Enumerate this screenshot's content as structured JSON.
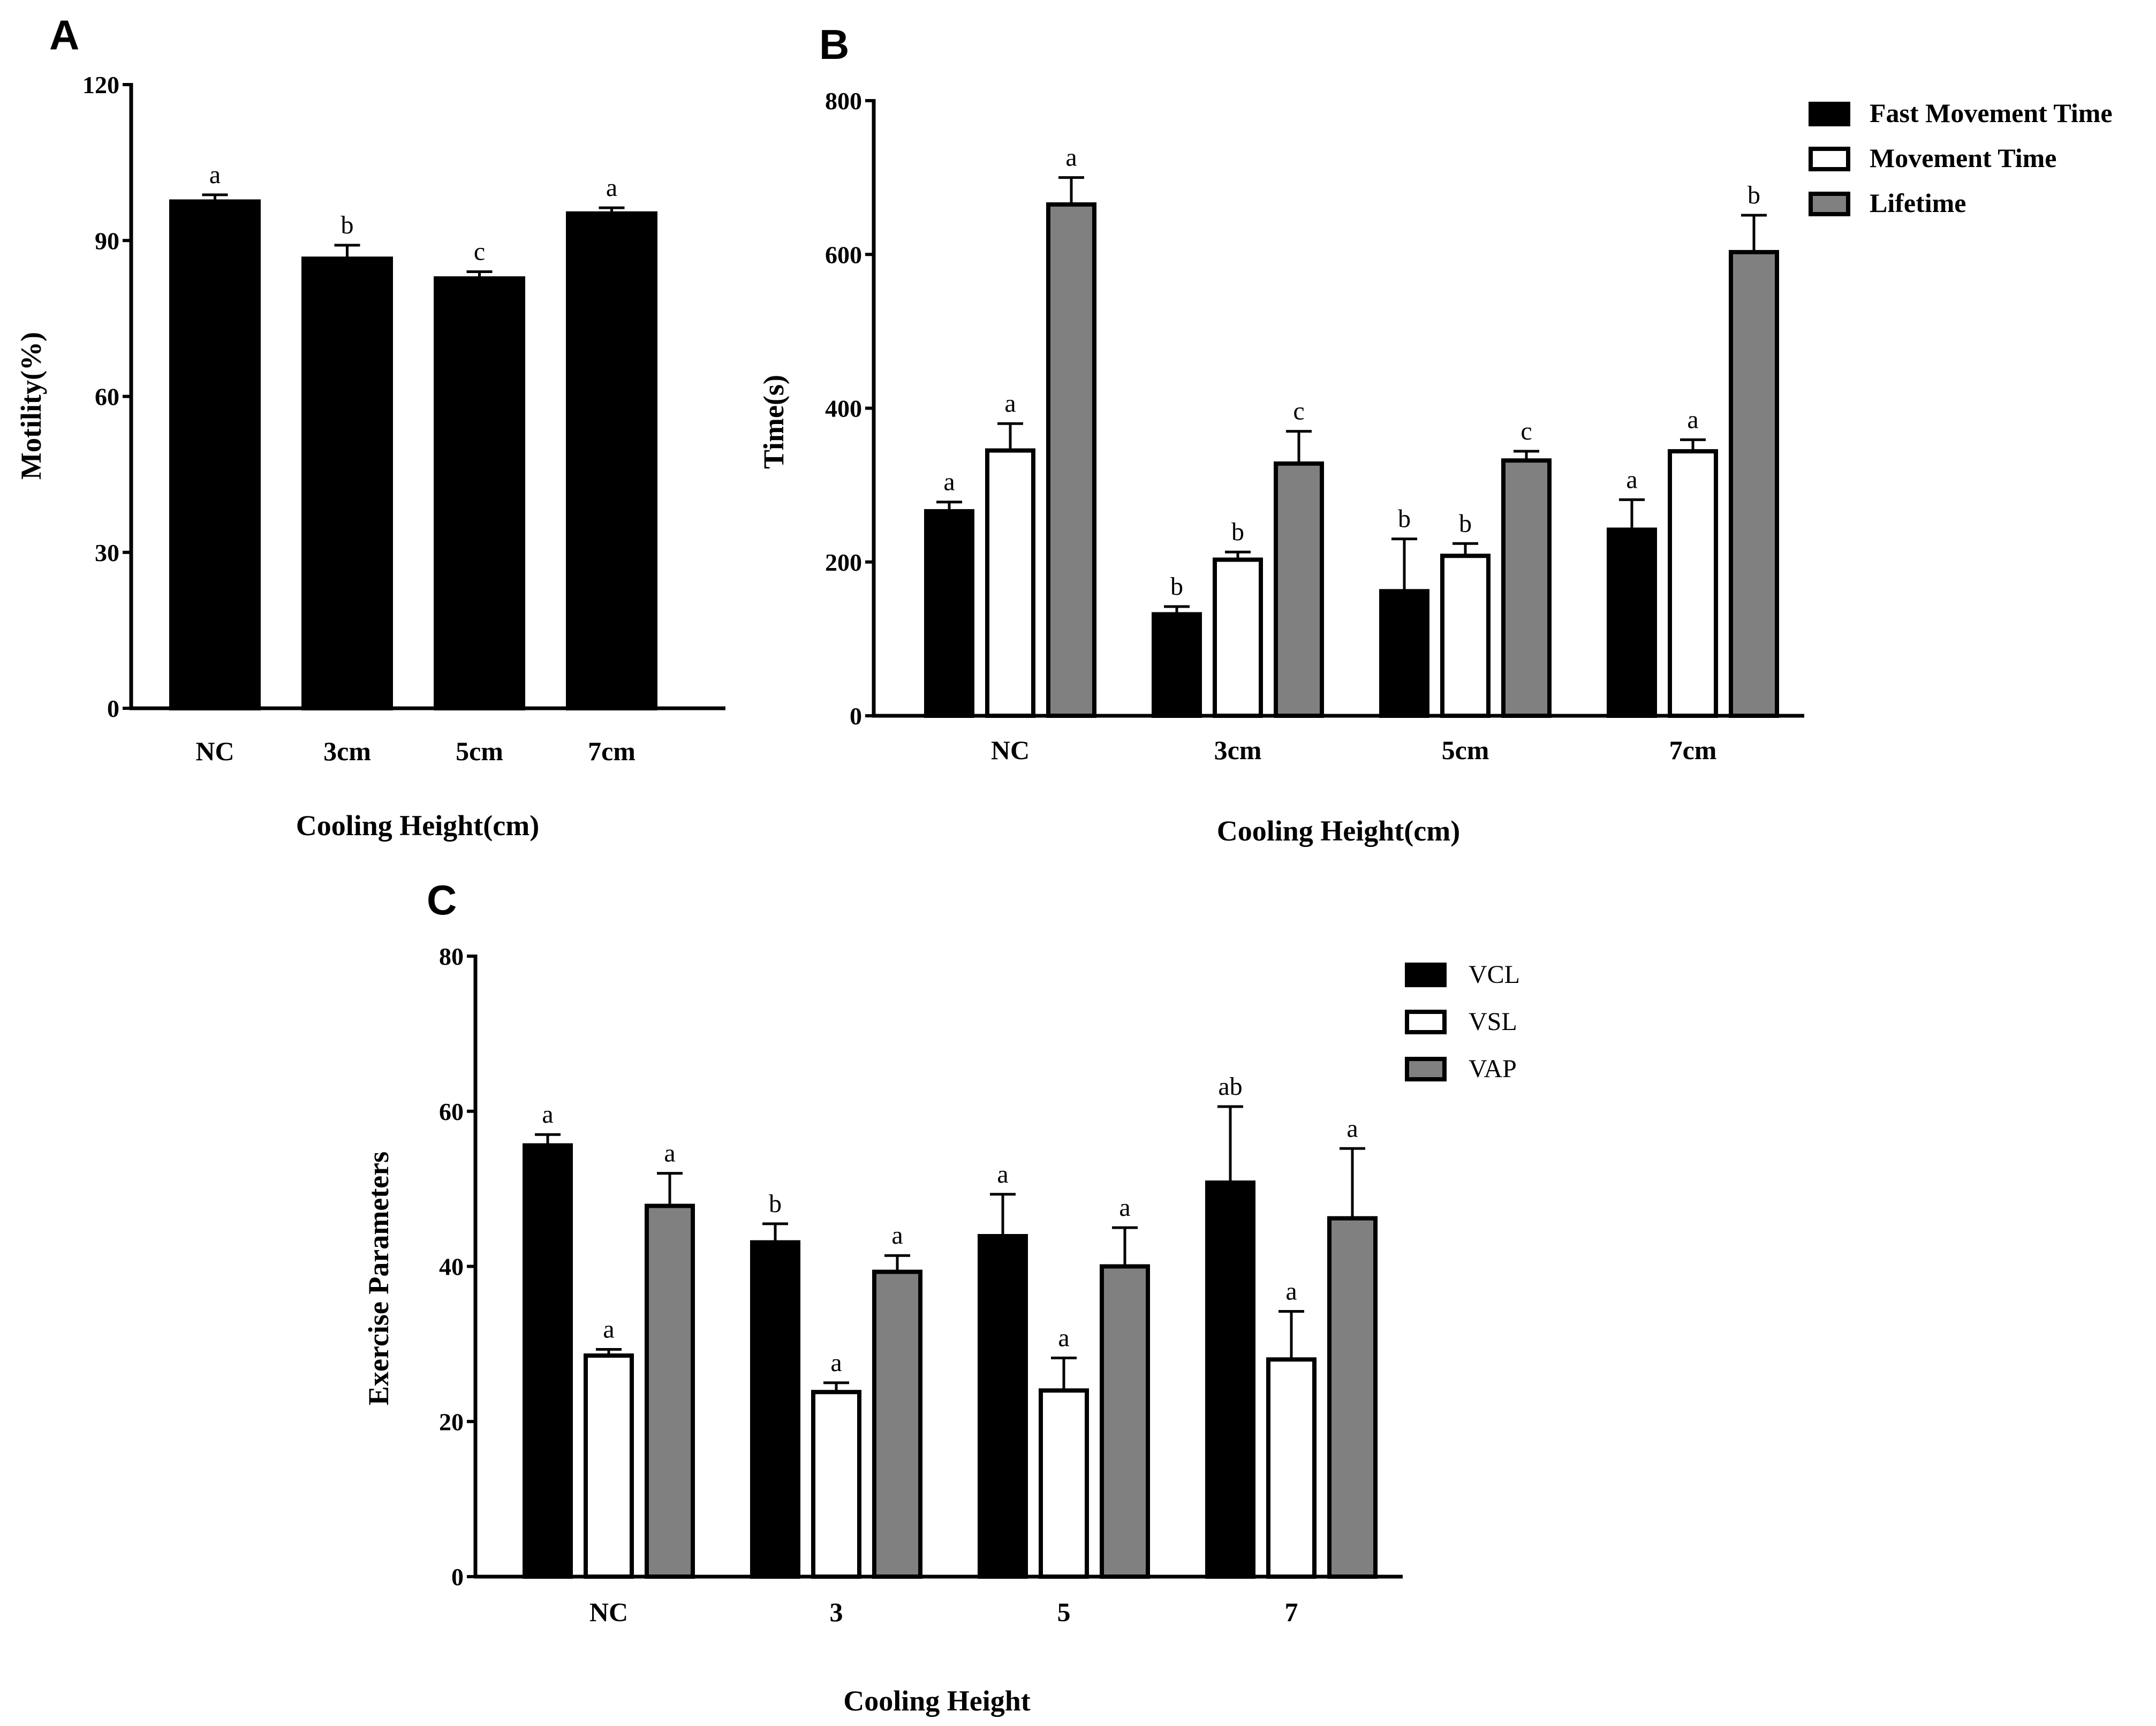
{
  "chart_data": [
    {
      "panel": "A",
      "type": "bar",
      "title": "",
      "xlabel": "Cooling Height(cm)",
      "ylabel": "Motility(%)",
      "ylim": [
        0,
        120
      ],
      "yticks": [
        "0",
        "30",
        "60",
        "90",
        "120"
      ],
      "categories": [
        "NC",
        "3cm",
        "5cm",
        "7cm"
      ],
      "series": [
        {
          "name": "Motility",
          "color": "#000000",
          "values": [
            97.5,
            86.5,
            82.7,
            95.2
          ],
          "errors": [
            1.3,
            2.6,
            1.3,
            1.1
          ],
          "significance": [
            "a",
            "b",
            "c",
            "a"
          ]
        }
      ]
    },
    {
      "panel": "B",
      "type": "bar",
      "title": "",
      "xlabel": "Cooling Height(cm)",
      "ylabel": "Time(s)",
      "ylim": [
        0,
        800
      ],
      "yticks": [
        "0",
        "200",
        "400",
        "600",
        "800"
      ],
      "categories": [
        "NC",
        "3cm",
        "5cm",
        "7cm"
      ],
      "legend_position": "top-right",
      "series": [
        {
          "name": "Fast Movement Time",
          "color": "#000000",
          "values": [
            266,
            132,
            162,
            242
          ],
          "errors": [
            12,
            10,
            68,
            39
          ],
          "significance": [
            "a",
            "b",
            "b",
            "a"
          ]
        },
        {
          "name": "Movement Time",
          "color": "#ffffff",
          "values": [
            345,
            203,
            208,
            344
          ],
          "errors": [
            35,
            10,
            16,
            15
          ],
          "significance": [
            "a",
            "b",
            "b",
            "a"
          ]
        },
        {
          "name": "Lifetime",
          "color": "#808080",
          "values": [
            665,
            328,
            332,
            603
          ],
          "errors": [
            35,
            42,
            12,
            48
          ],
          "significance": [
            "a",
            "c",
            "c",
            "b"
          ]
        }
      ]
    },
    {
      "panel": "C",
      "type": "bar",
      "title": "",
      "xlabel": "Cooling Height",
      "ylabel": "Exercise Parameters",
      "ylim": [
        0,
        80
      ],
      "yticks": [
        "0",
        "20",
        "40",
        "60",
        "80"
      ],
      "categories": [
        "NC",
        "3",
        "5",
        "7"
      ],
      "legend_position": "top-right",
      "series": [
        {
          "name": "VCL",
          "color": "#000000",
          "values": [
            55.6,
            43.1,
            43.9,
            50.8
          ],
          "errors": [
            1.4,
            2.4,
            5.4,
            9.8
          ],
          "significance": [
            "a",
            "b",
            "a",
            "ab"
          ]
        },
        {
          "name": "VSL",
          "color": "#ffffff",
          "values": [
            28.5,
            23.8,
            24.0,
            28.0
          ],
          "errors": [
            0.8,
            1.2,
            4.2,
            6.2
          ],
          "significance": [
            "a",
            "a",
            "a",
            "a"
          ]
        },
        {
          "name": "VAP",
          "color": "#808080",
          "values": [
            47.8,
            39.3,
            40.0,
            46.2
          ],
          "errors": [
            4.2,
            2.1,
            5.0,
            9.0
          ],
          "significance": [
            "a",
            "a",
            "a",
            "a"
          ]
        }
      ]
    }
  ]
}
